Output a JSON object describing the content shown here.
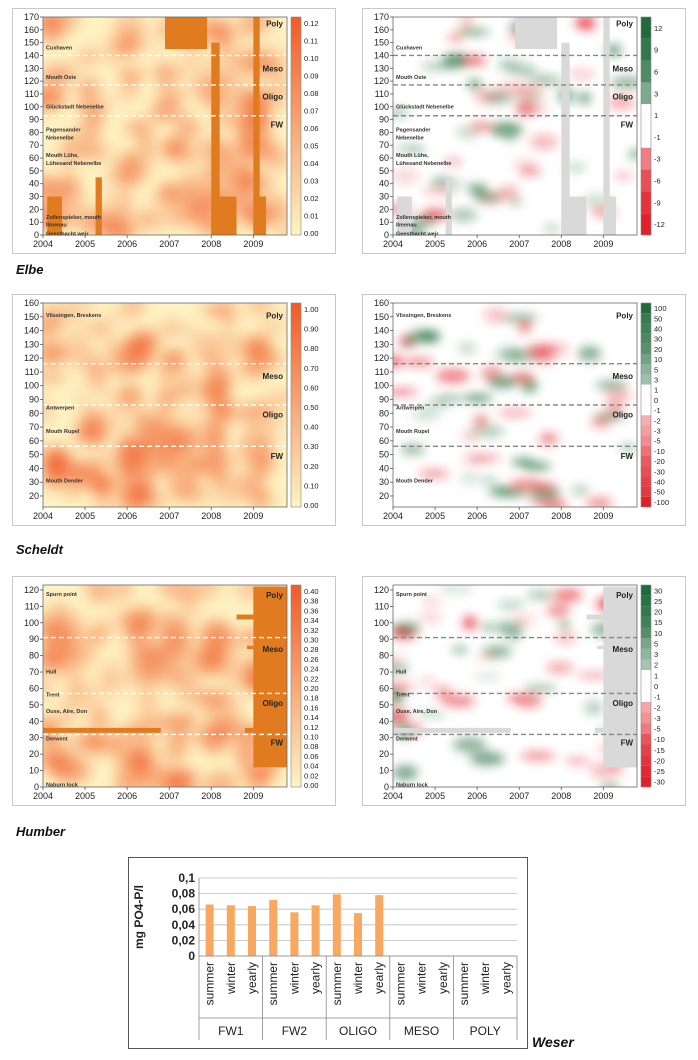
{
  "colors": {
    "abs_low": "#fef3c4",
    "abs_high": "#f05a28",
    "pos_high": "#1f6b3a",
    "neg_high": "#e0202a",
    "block": "#e07b1f",
    "gap": "#d9d9d9",
    "bar": "#f8a860"
  },
  "x_ticks": [
    "2004",
    "2005",
    "2006",
    "2007",
    "2008",
    "2009"
  ],
  "estuaries": [
    {
      "name": "Elbe",
      "y_ticks": [
        "0",
        "10",
        "20",
        "30",
        "40",
        "50",
        "60",
        "70",
        "80",
        "90",
        "100",
        "110",
        "120",
        "130",
        "140",
        "150",
        "160",
        "170"
      ],
      "y_range": [
        0,
        170
      ],
      "abs_scale": [
        "0.12",
        "0.11",
        "0.10",
        "0.09",
        "0.08",
        "0.07",
        "0.06",
        "0.05",
        "0.04",
        "0.03",
        "0.02",
        "0.01",
        "0.00"
      ],
      "diff_scale": [
        "12",
        "9",
        "6",
        "3",
        "1",
        "-1",
        "-3",
        "-6",
        "-9",
        "-12"
      ],
      "zones": [
        {
          "label": "Poly",
          "y": 165
        },
        {
          "label": "Meso",
          "y": 130
        },
        {
          "label": "Oligo",
          "y": 108
        },
        {
          "label": "FW",
          "y": 86
        }
      ],
      "boundaries": [
        140,
        117,
        93
      ],
      "places": [
        {
          "label": "Cuxhaven",
          "y": 147
        },
        {
          "label": "Mouth Oste",
          "y": 124
        },
        {
          "label": "Glückstadt Nebenelbe",
          "y": 101
        },
        {
          "label": "Pagensander",
          "y": 83
        },
        {
          "label": "Nebenelbe",
          "y": 77
        },
        {
          "label": "Mouth Lühe,",
          "y": 63
        },
        {
          "label": "Lühesand Nebenelbe",
          "y": 57
        },
        {
          "label": "Zollenspieker, mouth",
          "y": 15
        },
        {
          "label": "Ilmenau",
          "y": 9
        },
        {
          "label": "Geesthacht weir",
          "y": 2
        }
      ]
    },
    {
      "name": "Scheldt",
      "y_ticks": [
        "20",
        "30",
        "40",
        "50",
        "60",
        "70",
        "80",
        "90",
        "100",
        "110",
        "120",
        "130",
        "140",
        "150",
        "160"
      ],
      "y_range": [
        12,
        160
      ],
      "abs_scale": [
        "1.00",
        "0.90",
        "0.80",
        "0.70",
        "0.60",
        "0.50",
        "0.40",
        "0.30",
        "0.20",
        "0.10",
        "0.00"
      ],
      "diff_scale": [
        "100",
        "50",
        "40",
        "30",
        "20",
        "10",
        "5",
        "3",
        "1",
        "0",
        "-1",
        "-2",
        "-3",
        "-5",
        "-10",
        "-20",
        "-30",
        "-40",
        "-50",
        "-100"
      ],
      "zones": [
        {
          "label": "Poly",
          "y": 151
        },
        {
          "label": "Meso",
          "y": 107
        },
        {
          "label": "Oligo",
          "y": 79
        },
        {
          "label": "FW",
          "y": 49
        }
      ],
      "boundaries": [
        116,
        86,
        56
      ],
      "places": [
        {
          "label": "Vlissingen, Breskens",
          "y": 152
        },
        {
          "label": "Antwerpen",
          "y": 85
        },
        {
          "label": "Mouth Rupel",
          "y": 68
        },
        {
          "label": "Mouth Dender",
          "y": 32
        }
      ]
    },
    {
      "name": "Humber",
      "y_ticks": [
        "0",
        "10",
        "20",
        "30",
        "40",
        "50",
        "60",
        "70",
        "80",
        "90",
        "100",
        "110",
        "120"
      ],
      "y_range": [
        0,
        123
      ],
      "abs_scale": [
        "0.40",
        "0.38",
        "0.36",
        "0.34",
        "0.32",
        "0.30",
        "0.28",
        "0.26",
        "0.24",
        "0.22",
        "0.20",
        "0.18",
        "0.16",
        "0.14",
        "0.12",
        "0.10",
        "0.08",
        "0.06",
        "0.04",
        "0.02",
        "0.00"
      ],
      "diff_scale": [
        "30",
        "25",
        "20",
        "15",
        "10",
        "5",
        "3",
        "2",
        "1",
        "0",
        "-1",
        "-2",
        "-3",
        "-5",
        "-10",
        "-15",
        "-20",
        "-25",
        "-30"
      ],
      "zones": [
        {
          "label": "Poly",
          "y": 117
        },
        {
          "label": "Meso",
          "y": 84
        },
        {
          "label": "Oligo",
          "y": 51
        },
        {
          "label": "FW",
          "y": 27
        }
      ],
      "boundaries": [
        91,
        57,
        32
      ],
      "places": [
        {
          "label": "Spurn point",
          "y": 118
        },
        {
          "label": "Hull",
          "y": 71
        },
        {
          "label": "Trent",
          "y": 57
        },
        {
          "label": "Ouse, Aire, Don",
          "y": 47
        },
        {
          "label": "Derwent",
          "y": 30
        },
        {
          "label": "Naburn lock",
          "y": 2
        }
      ]
    }
  ],
  "chart_data": [
    {
      "type": "heatmap",
      "estuary": "Elbe",
      "ylim": [
        0,
        170
      ],
      "xlim": [
        2004,
        2009.8
      ],
      "colorbar_range": [
        0,
        0.12
      ],
      "diff_colorbar_range": [
        -12,
        12
      ]
    },
    {
      "type": "heatmap",
      "estuary": "Scheldt",
      "ylim": [
        12,
        160
      ],
      "xlim": [
        2004,
        2009.8
      ],
      "colorbar_range": [
        0,
        1.0
      ],
      "diff_colorbar_range": [
        -100,
        100
      ]
    },
    {
      "type": "heatmap",
      "estuary": "Humber",
      "ylim": [
        0,
        123
      ],
      "xlim": [
        2004,
        2009.8
      ],
      "colorbar_range": [
        0,
        0.4
      ],
      "diff_colorbar_range": [
        -30,
        30
      ]
    },
    {
      "type": "bar",
      "title": "Weser",
      "ylabel": "mg  PO4-P/l",
      "y_ticks": [
        "0",
        "0,02",
        "0,04",
        "0,06",
        "0,08",
        "0,1"
      ],
      "ylim": [
        0,
        0.1
      ],
      "groups": [
        "FW1",
        "FW2",
        "OLIGO",
        "MESO",
        "POLY"
      ],
      "categories": [
        "summer",
        "winter",
        "yearly"
      ],
      "series": [
        {
          "group": "FW1",
          "values": [
            0.066,
            0.065,
            0.064
          ]
        },
        {
          "group": "FW2",
          "values": [
            0.072,
            0.056,
            0.065
          ]
        },
        {
          "group": "OLIGO",
          "values": [
            0.079,
            0.055,
            0.078
          ]
        },
        {
          "group": "MESO",
          "values": [
            null,
            null,
            null
          ]
        },
        {
          "group": "POLY",
          "values": [
            null,
            null,
            null
          ]
        }
      ]
    }
  ]
}
